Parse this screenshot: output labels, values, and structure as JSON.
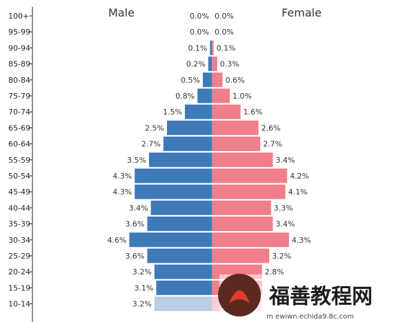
{
  "chart_data": {
    "type": "bar",
    "orientation": "horizontal",
    "layout": "population-pyramid",
    "titles": {
      "left": "Male",
      "right": "Female"
    },
    "categories": [
      "100+",
      "95-99",
      "90-94",
      "85-89",
      "80-84",
      "75-79",
      "70-74",
      "65-69",
      "60-64",
      "55-59",
      "50-54",
      "45-49",
      "40-44",
      "35-39",
      "30-34",
      "25-29",
      "20-24",
      "15-19",
      "10-14"
    ],
    "series": [
      {
        "name": "Male",
        "values": [
          0.0,
          0.0,
          0.1,
          0.2,
          0.5,
          0.8,
          1.5,
          2.5,
          2.7,
          3.5,
          4.3,
          4.3,
          3.4,
          3.6,
          4.6,
          3.6,
          3.2,
          3.1,
          3.2
        ]
      },
      {
        "name": "Female",
        "values": [
          0.0,
          0.0,
          0.1,
          0.3,
          0.6,
          1.0,
          1.6,
          2.6,
          2.7,
          3.4,
          4.2,
          4.1,
          3.3,
          3.4,
          4.3,
          3.2,
          2.8,
          2.8,
          2.8
        ]
      }
    ],
    "value_labels": {
      "male": [
        "0.0%",
        "0.0%",
        "0.1%",
        "0.2%",
        "0.5%",
        "0.8%",
        "1.5%",
        "2.5%",
        "2.7%",
        "3.5%",
        "4.3%",
        "4.3%",
        "3.4%",
        "3.6%",
        "4.6%",
        "3.6%",
        "3.2%",
        "3.1%",
        "3.2%"
      ],
      "female": [
        "0.0%",
        "0.0%",
        "0.1%",
        "0.3%",
        "0.6%",
        "1.0%",
        "1.6%",
        "2.6%",
        "2.7%",
        "3.4%",
        "4.2%",
        "4.1%",
        "3.3%",
        "3.4%",
        "4.3%",
        "3.2%",
        "2.8%",
        "",
        ""
      ]
    },
    "faded_categories": [
      "10-14"
    ],
    "xlim": [
      0,
      5
    ],
    "grid": false,
    "legend": "none",
    "colors": {
      "male": "#3f7ab8",
      "female": "#f07f8b",
      "male_faded": "#b9cde3",
      "female_faded": "#f8cdd3"
    }
  },
  "watermark": {
    "text": "m ewiwn.echida9.8c.com",
    "mark": "福善教程网"
  }
}
